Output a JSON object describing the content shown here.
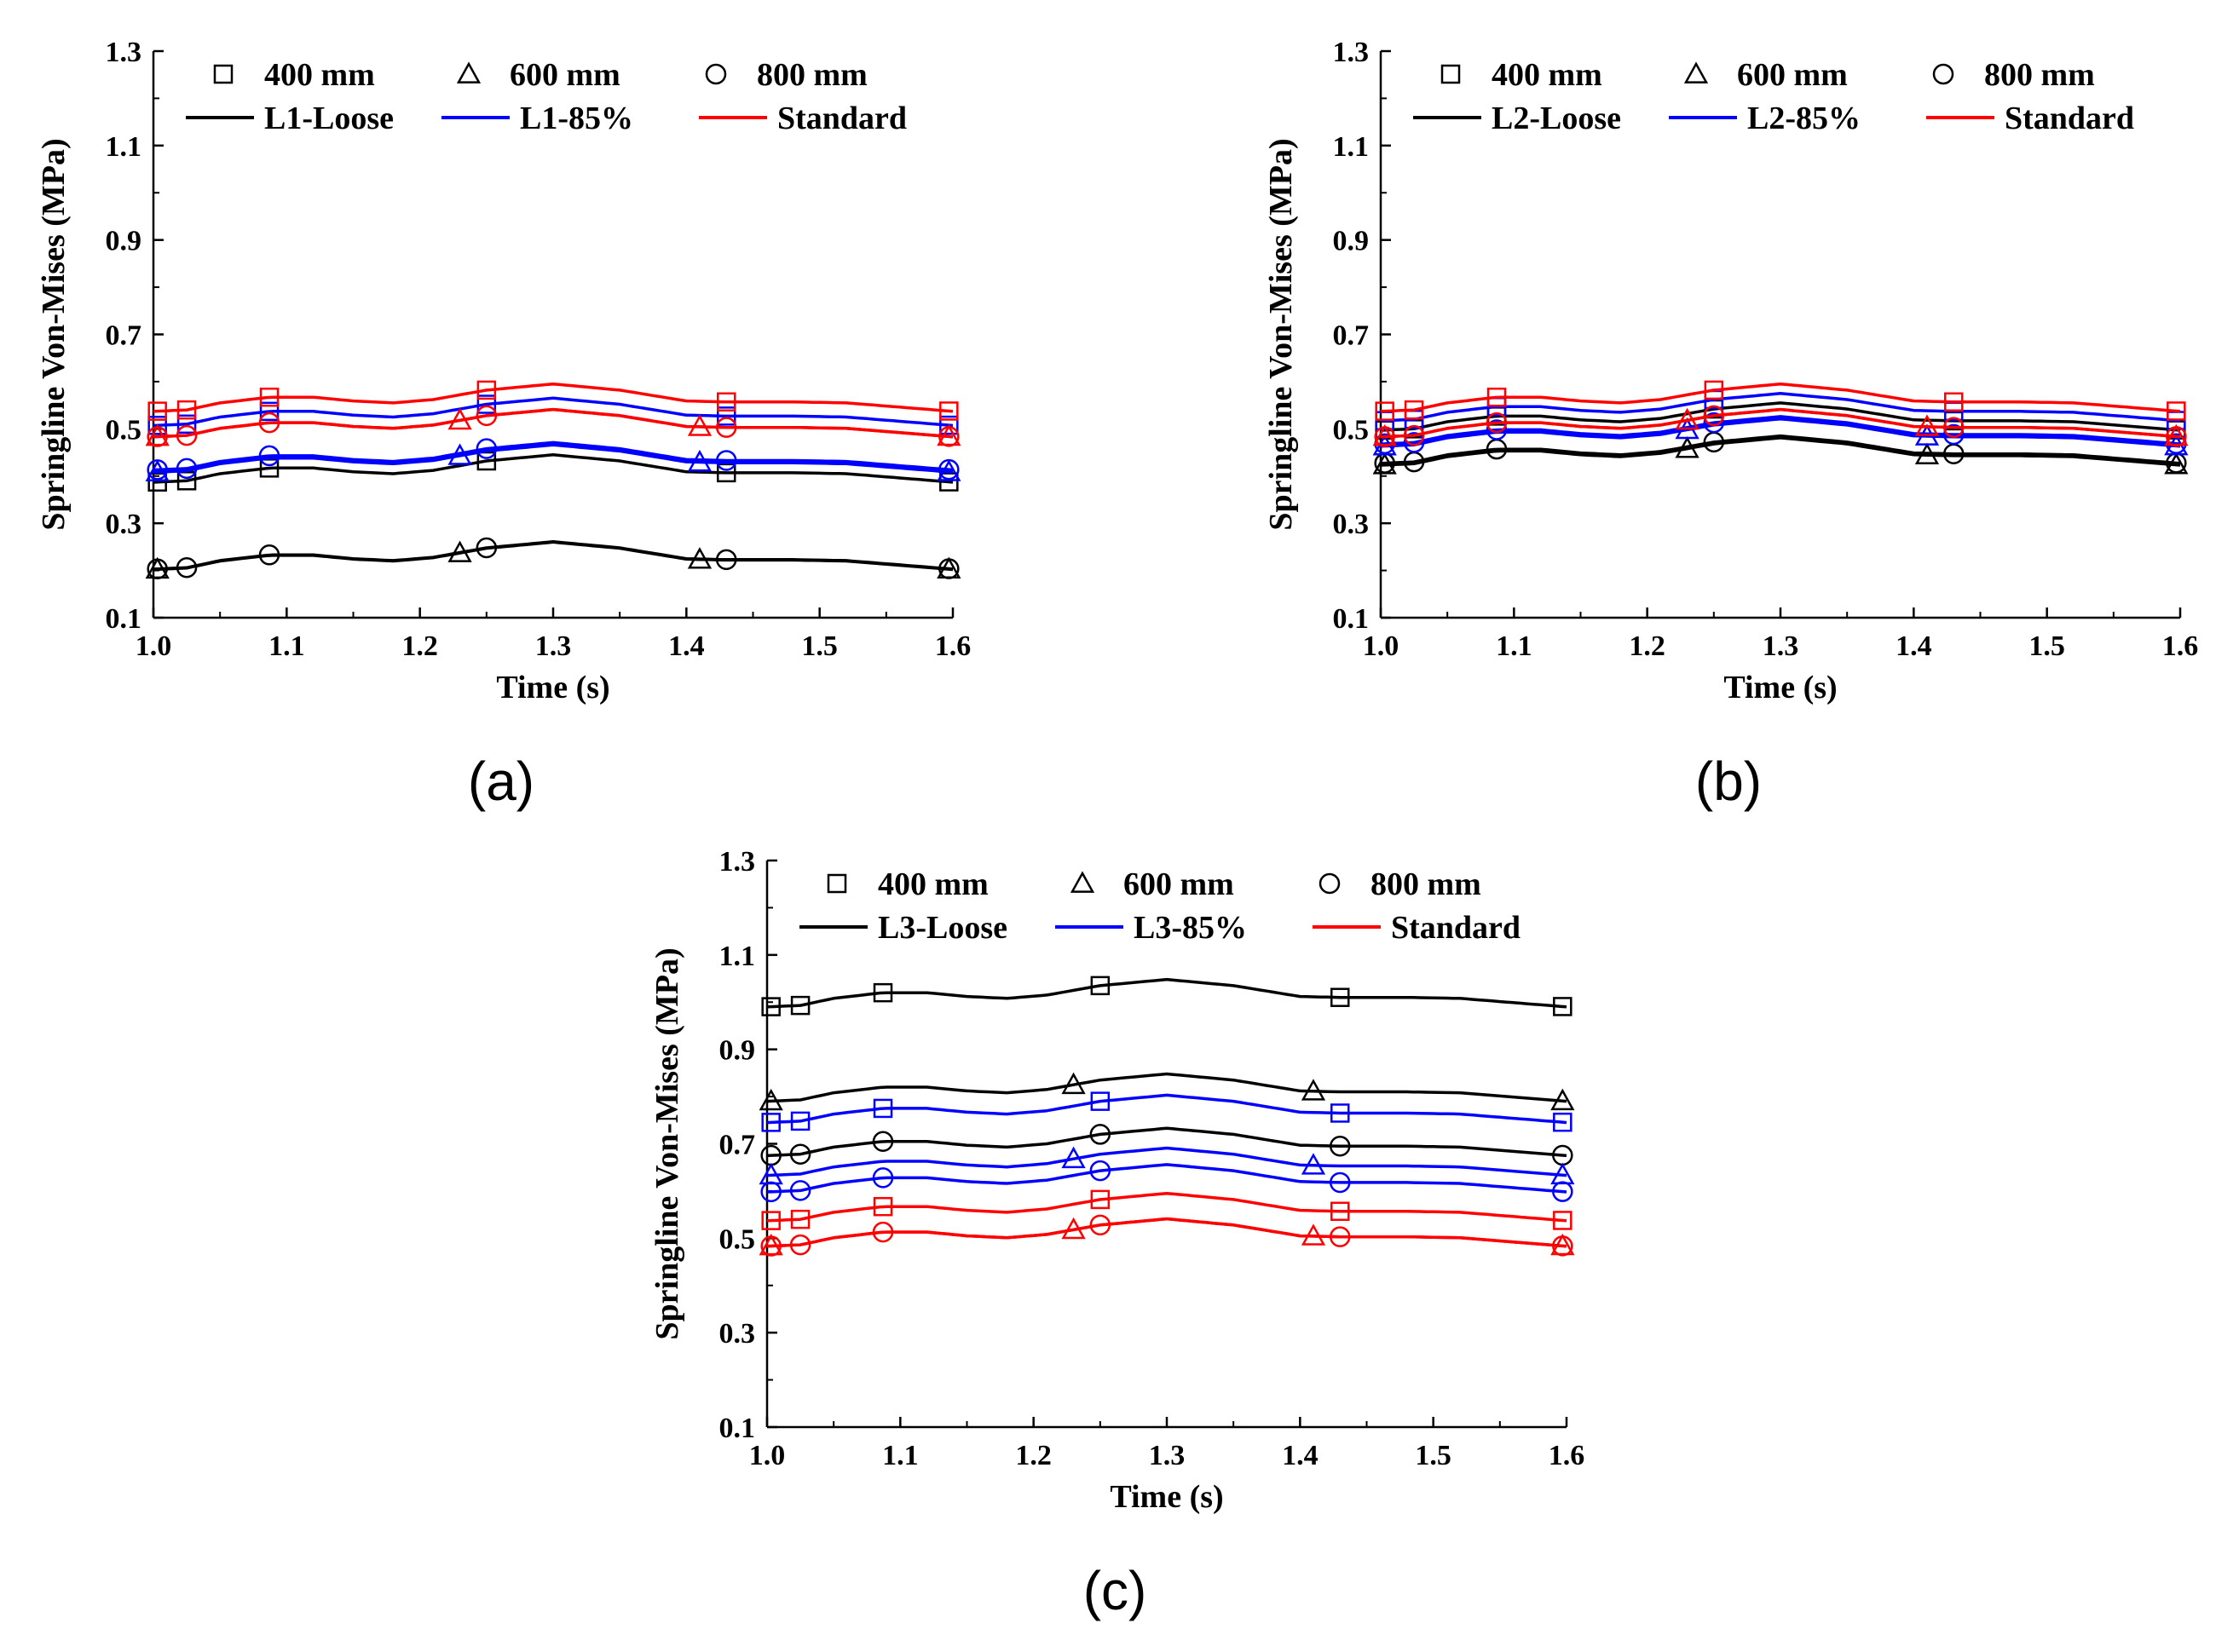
{
  "chart_data": [
    {
      "id": "a",
      "type": "line",
      "panel_label": "(a)",
      "xlabel": "Time (s)",
      "ylabel": "Springline Von-Mises (MPa)",
      "xlim": [
        1.0,
        1.6
      ],
      "ylim": [
        0.1,
        1.3
      ],
      "xticks": [
        "1.0",
        "1.1",
        "1.2",
        "1.3",
        "1.4",
        "1.5",
        "1.6"
      ],
      "yticks": [
        "0.1",
        "0.3",
        "0.5",
        "0.7",
        "0.9",
        "1.1",
        "1.3"
      ],
      "legend_markers": [
        {
          "marker": "square",
          "label": "400 mm"
        },
        {
          "marker": "triangle",
          "label": "600 mm"
        },
        {
          "marker": "circle",
          "label": "800 mm"
        }
      ],
      "legend_lines": [
        {
          "color": "#000000",
          "label": "L1-Loose"
        },
        {
          "color": "#0000ff",
          "label": "L1-85%"
        },
        {
          "color": "#ff0000",
          "label": "Standard"
        }
      ],
      "series": [
        {
          "name": "L1-Loose 400 mm",
          "color": "#000000",
          "marker": "square",
          "base": 0.387
        },
        {
          "name": "L1-Loose 600 mm",
          "color": "#000000",
          "marker": "triangle",
          "base": 0.202
        },
        {
          "name": "L1-Loose 800 mm",
          "color": "#000000",
          "marker": "circle",
          "base": 0.203
        },
        {
          "name": "L1-85% 400 mm",
          "color": "#0000ff",
          "marker": "square",
          "base": 0.507
        },
        {
          "name": "L1-85% 600 mm",
          "color": "#0000ff",
          "marker": "triangle",
          "base": 0.408
        },
        {
          "name": "L1-85% 800 mm",
          "color": "#0000ff",
          "marker": "circle",
          "base": 0.413
        },
        {
          "name": "Standard 400 mm",
          "color": "#ff0000",
          "marker": "square",
          "base": 0.537
        },
        {
          "name": "Standard 600 mm",
          "color": "#ff0000",
          "marker": "triangle",
          "base": 0.483
        },
        {
          "name": "Standard 800 mm",
          "color": "#ff0000",
          "marker": "circle",
          "base": 0.483
        }
      ]
    },
    {
      "id": "b",
      "type": "line",
      "panel_label": "(b)",
      "xlabel": "Time (s)",
      "ylabel": "Springline Von-Mises (MPa)",
      "xlim": [
        1.0,
        1.6
      ],
      "ylim": [
        0.1,
        1.3
      ],
      "xticks": [
        "1.0",
        "1.1",
        "1.2",
        "1.3",
        "1.4",
        "1.5",
        "1.6"
      ],
      "yticks": [
        "0.1",
        "0.3",
        "0.5",
        "0.7",
        "0.9",
        "1.1",
        "1.3"
      ],
      "legend_markers": [
        {
          "marker": "square",
          "label": "400 mm"
        },
        {
          "marker": "triangle",
          "label": "600 mm"
        },
        {
          "marker": "circle",
          "label": "800 mm"
        }
      ],
      "legend_lines": [
        {
          "color": "#000000",
          "label": "L2-Loose"
        },
        {
          "color": "#0000ff",
          "label": "L2-85%"
        },
        {
          "color": "#ff0000",
          "label": "Standard"
        }
      ],
      "series": [
        {
          "name": "L2-Loose 400 mm",
          "color": "#000000",
          "marker": "square",
          "base": 0.497
        },
        {
          "name": "L2-Loose 600 mm",
          "color": "#000000",
          "marker": "triangle",
          "base": 0.423
        },
        {
          "name": "L2-Loose 800 mm",
          "color": "#000000",
          "marker": "circle",
          "base": 0.427
        },
        {
          "name": "L2-85% 400 mm",
          "color": "#0000ff",
          "marker": "square",
          "base": 0.517
        },
        {
          "name": "L2-85% 600 mm",
          "color": "#0000ff",
          "marker": "triangle",
          "base": 0.463
        },
        {
          "name": "L2-85% 800 mm",
          "color": "#0000ff",
          "marker": "circle",
          "base": 0.468
        },
        {
          "name": "Standard 400 mm",
          "color": "#ff0000",
          "marker": "square",
          "base": 0.537
        },
        {
          "name": "Standard 600 mm",
          "color": "#ff0000",
          "marker": "triangle",
          "base": 0.483
        },
        {
          "name": "Standard 800 mm",
          "color": "#ff0000",
          "marker": "circle",
          "base": 0.483
        }
      ]
    },
    {
      "id": "c",
      "type": "line",
      "panel_label": "(c)",
      "xlabel": "Time (s)",
      "ylabel": "Springline Von-Mises (MPa)",
      "xlim": [
        1.0,
        1.6
      ],
      "ylim": [
        0.1,
        1.3
      ],
      "xticks": [
        "1.0",
        "1.1",
        "1.2",
        "1.3",
        "1.4",
        "1.5",
        "1.6"
      ],
      "yticks": [
        "0.1",
        "0.3",
        "0.5",
        "0.7",
        "0.9",
        "1.1",
        "1.3"
      ],
      "legend_markers": [
        {
          "marker": "square",
          "label": "400 mm"
        },
        {
          "marker": "triangle",
          "label": "600 mm"
        },
        {
          "marker": "circle",
          "label": "800 mm"
        }
      ],
      "legend_lines": [
        {
          "color": "#000000",
          "label": "L3-Loose"
        },
        {
          "color": "#0000ff",
          "label": "L3-85%"
        },
        {
          "color": "#ff0000",
          "label": "Standard"
        }
      ],
      "series": [
        {
          "name": "L3-Loose 400 mm",
          "color": "#000000",
          "marker": "square",
          "base": 0.99
        },
        {
          "name": "L3-Loose 600 mm",
          "color": "#000000",
          "marker": "triangle",
          "base": 0.79
        },
        {
          "name": "L3-Loose 800 mm",
          "color": "#000000",
          "marker": "circle",
          "base": 0.675
        },
        {
          "name": "L3-85% 400 mm",
          "color": "#0000ff",
          "marker": "square",
          "base": 0.745
        },
        {
          "name": "L3-85% 600 mm",
          "color": "#0000ff",
          "marker": "triangle",
          "base": 0.633
        },
        {
          "name": "L3-85% 800 mm",
          "color": "#0000ff",
          "marker": "circle",
          "base": 0.598
        },
        {
          "name": "Standard 400 mm",
          "color": "#ff0000",
          "marker": "square",
          "base": 0.537
        },
        {
          "name": "Standard 600 mm",
          "color": "#ff0000",
          "marker": "triangle",
          "base": 0.483
        },
        {
          "name": "Standard 800 mm",
          "color": "#ff0000",
          "marker": "circle",
          "base": 0.483
        }
      ]
    }
  ],
  "shape": {
    "x": [
      1.0,
      1.025,
      1.05,
      1.087,
      1.12,
      1.15,
      1.18,
      1.21,
      1.25,
      1.3,
      1.35,
      1.4,
      1.43,
      1.48,
      1.52,
      1.6
    ],
    "dy": [
      0.0,
      0.003,
      0.018,
      0.03,
      0.03,
      0.022,
      0.018,
      0.025,
      0.045,
      0.058,
      0.045,
      0.022,
      0.02,
      0.02,
      0.018,
      0.0
    ]
  },
  "marker_x": {
    "square": [
      1.003,
      1.025,
      1.087,
      1.25,
      1.43,
      1.597
    ],
    "triangle": [
      1.003,
      1.23,
      1.41,
      1.597
    ],
    "circle": [
      1.003,
      1.025,
      1.087,
      1.25,
      1.43,
      1.597
    ]
  }
}
